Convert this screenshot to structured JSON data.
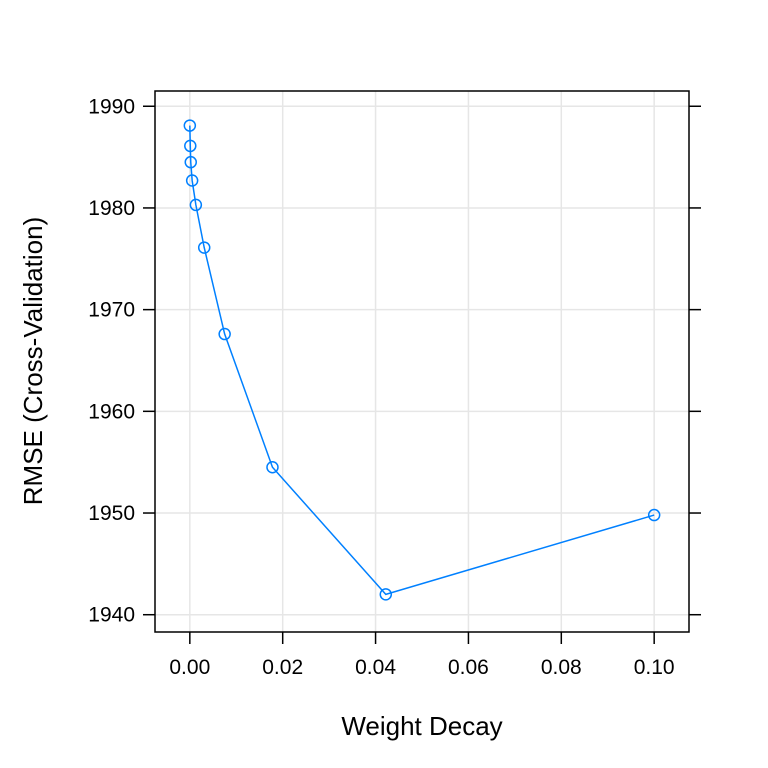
{
  "chart_data": {
    "type": "line",
    "title": "",
    "xlabel": "Weight Decay",
    "ylabel": "RMSE (Cross-Validation)",
    "xlim": [
      -0.0075,
      0.1075
    ],
    "ylim": [
      1938.3,
      1991.5
    ],
    "xticks": [
      0.0,
      0.02,
      0.04,
      0.06,
      0.08,
      0.1
    ],
    "xtick_labels": [
      "0.00",
      "0.02",
      "0.04",
      "0.06",
      "0.08",
      "0.10"
    ],
    "yticks": [
      1940,
      1950,
      1960,
      1970,
      1980,
      1990
    ],
    "ytick_labels": [
      "1940",
      "1950",
      "1960",
      "1970",
      "1980",
      "1990"
    ],
    "grid": true,
    "series": [
      {
        "color": "#0080ff",
        "marker": "open-circle",
        "x": [
          0.0,
          0.0001,
          0.0002,
          0.0005,
          0.0013,
          0.0031,
          0.0075,
          0.0178,
          0.0422,
          0.1
        ],
        "y": [
          1988.1,
          1986.1,
          1984.5,
          1982.7,
          1980.3,
          1976.1,
          1967.6,
          1954.5,
          1942.0,
          1949.8
        ]
      }
    ]
  }
}
